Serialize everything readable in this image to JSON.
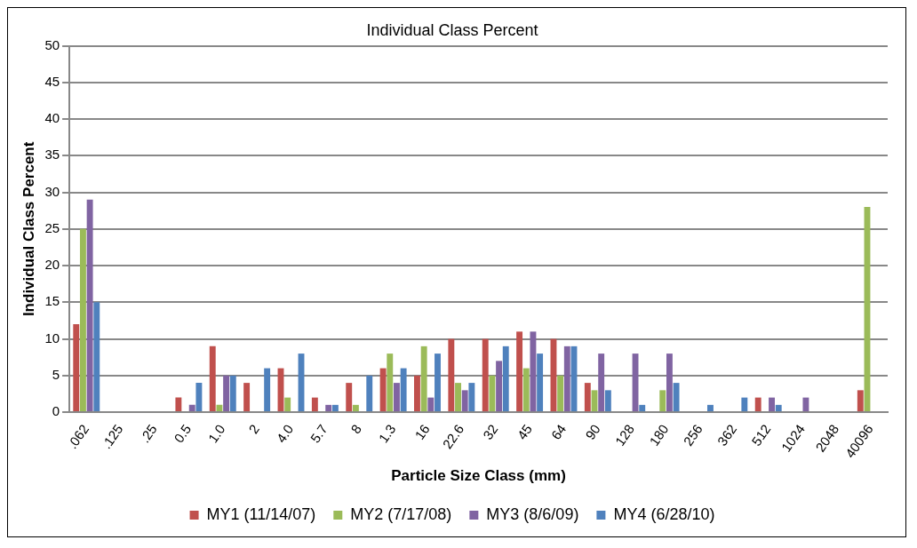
{
  "chart_data": {
    "type": "bar",
    "title": "Individual Class Percent",
    "xlabel": "Particle Size Class (mm)",
    "ylabel": "Individual Class Percent",
    "categories": [
      ".062",
      ".125",
      ".25",
      "0.5",
      "1.0",
      "2",
      "4.0",
      "5.7",
      "8",
      "1.3",
      "16",
      "22.6",
      "32",
      "45",
      "64",
      "90",
      "128",
      "180",
      "256",
      "362",
      "512",
      "1024",
      "2048",
      "40096"
    ],
    "series": [
      {
        "name": "MY1 (11/14/07)",
        "color": "#c0504d",
        "values": [
          12,
          0,
          0,
          2,
          9,
          4,
          6,
          2,
          4,
          6,
          5,
          10,
          10,
          11,
          10,
          4,
          0,
          0,
          0,
          0,
          2,
          0,
          0,
          3
        ]
      },
      {
        "name": "MY2 (7/17/08)",
        "color": "#9bbb59",
        "values": [
          25,
          0,
          0,
          0,
          1,
          0,
          2,
          0,
          1,
          8,
          9,
          4,
          5,
          6,
          5,
          3,
          0,
          3,
          0,
          0,
          0,
          0,
          0,
          28
        ]
      },
      {
        "name": "MY3 (8/6/09)",
        "color": "#8064a2",
        "values": [
          29,
          0,
          0,
          1,
          5,
          0,
          0,
          1,
          0,
          4,
          2,
          3,
          7,
          11,
          9,
          8,
          8,
          8,
          0,
          0,
          2,
          2,
          0,
          0
        ]
      },
      {
        "name": "MY4 (6/28/10)",
        "color": "#4f81bd",
        "values": [
          15,
          0,
          0,
          4,
          5,
          6,
          8,
          1,
          5,
          6,
          8,
          4,
          9,
          8,
          9,
          3,
          1,
          4,
          1,
          2,
          1,
          0,
          0,
          0
        ]
      }
    ],
    "ylim": [
      0,
      50
    ],
    "yticks": [
      0,
      5,
      10,
      15,
      20,
      25,
      30,
      35,
      40,
      45,
      50
    ],
    "grid": "y",
    "legend": "bottom"
  }
}
